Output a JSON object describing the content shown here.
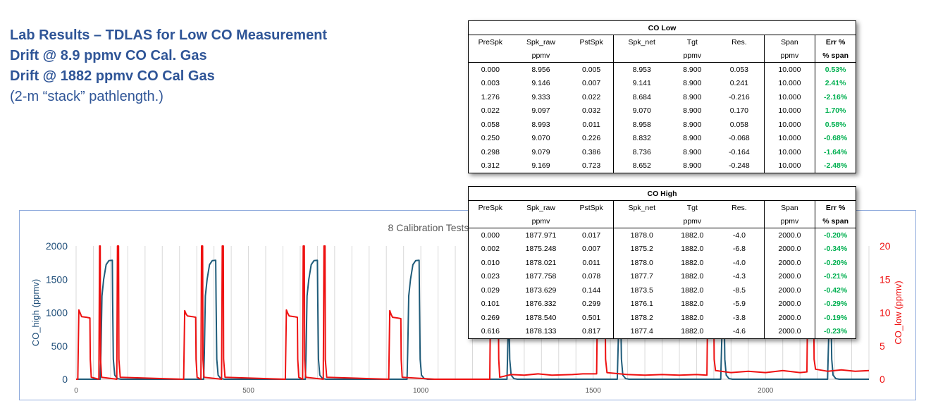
{
  "title": {
    "line1": "Lab Results – TDLAS for Low CO Measurement",
    "line2": "Drift @ 8.9 ppmv CO Cal. Gas",
    "line3": "Drift @ 1882 ppmv CO Cal Gas",
    "note": "(2-m “stack” pathlength.)"
  },
  "colors": {
    "title": "#2f5597",
    "co_high": "#1f5c7a",
    "co_low": "#ee1111",
    "err_good": "#00b050",
    "frame": "#8faadc"
  },
  "tables": {
    "low": {
      "caption": "CO Low",
      "headers": [
        "PreSpk",
        "Spk_raw",
        "PstSpk",
        "Spk_net",
        "Tgt",
        "Res.",
        "Span",
        "Err %"
      ],
      "units": [
        "",
        "ppmv",
        "",
        "",
        "ppmv",
        "",
        "ppmv",
        "% span"
      ],
      "rows": [
        [
          "0.000",
          "8.956",
          "0.005",
          "8.953",
          "8.900",
          "0.053",
          "10.000",
          "0.53%"
        ],
        [
          "0.003",
          "9.146",
          "0.007",
          "9.141",
          "8.900",
          "0.241",
          "10.000",
          "2.41%"
        ],
        [
          "1.276",
          "9.333",
          "0.022",
          "8.684",
          "8.900",
          "-0.216",
          "10.000",
          "-2.16%"
        ],
        [
          "0.022",
          "9.097",
          "0.032",
          "9.070",
          "8.900",
          "0.170",
          "10.000",
          "1.70%"
        ],
        [
          "0.058",
          "8.993",
          "0.011",
          "8.958",
          "8.900",
          "0.058",
          "10.000",
          "0.58%"
        ],
        [
          "0.250",
          "9.070",
          "0.226",
          "8.832",
          "8.900",
          "-0.068",
          "10.000",
          "-0.68%"
        ],
        [
          "0.298",
          "9.079",
          "0.386",
          "8.736",
          "8.900",
          "-0.164",
          "10.000",
          "-1.64%"
        ],
        [
          "0.312",
          "9.169",
          "0.723",
          "8.652",
          "8.900",
          "-0.248",
          "10.000",
          "-2.48%"
        ]
      ]
    },
    "high": {
      "caption": "CO High",
      "headers": [
        "PreSpk",
        "Spk_raw",
        "PstSpk",
        "Spk_net",
        "Tgt",
        "Res.",
        "Span",
        "Err %"
      ],
      "units": [
        "",
        "ppmv",
        "",
        "",
        "ppmv",
        "",
        "ppmv",
        "% span"
      ],
      "rows": [
        [
          "0.000",
          "1877.971",
          "0.017",
          "1878.0",
          "1882.0",
          "-4.0",
          "2000.0",
          "-0.20%"
        ],
        [
          "0.002",
          "1875.248",
          "0.007",
          "1875.2",
          "1882.0",
          "-6.8",
          "2000.0",
          "-0.34%"
        ],
        [
          "0.010",
          "1878.021",
          "0.011",
          "1878.0",
          "1882.0",
          "-4.0",
          "2000.0",
          "-0.20%"
        ],
        [
          "0.023",
          "1877.758",
          "0.078",
          "1877.7",
          "1882.0",
          "-4.3",
          "2000.0",
          "-0.21%"
        ],
        [
          "0.029",
          "1873.629",
          "0.144",
          "1873.5",
          "1882.0",
          "-8.5",
          "2000.0",
          "-0.42%"
        ],
        [
          "0.101",
          "1876.332",
          "0.299",
          "1876.1",
          "1882.0",
          "-5.9",
          "2000.0",
          "-0.29%"
        ],
        [
          "0.269",
          "1878.540",
          "0.501",
          "1878.2",
          "1882.0",
          "-3.8",
          "2000.0",
          "-0.19%"
        ],
        [
          "0.616",
          "1878.133",
          "0.817",
          "1877.4",
          "1882.0",
          "-4.6",
          "2000.0",
          "-0.23%"
        ]
      ]
    }
  },
  "chart_data": {
    "type": "line",
    "title": "8 Calibration Tests",
    "xlabel": "",
    "ylabel_left": "CO_high (ppmv)",
    "ylabel_right": "CO_low (ppmv)",
    "xlim": [
      0,
      2300
    ],
    "ylim_left": [
      0,
      2000
    ],
    "ylim_right": [
      0,
      20
    ],
    "x_ticks": [
      0,
      500,
      1000,
      1500,
      2000
    ],
    "y_ticks_left": [
      0,
      500,
      1000,
      1500,
      2000
    ],
    "y_ticks_right": [
      0,
      5,
      10,
      15,
      20
    ],
    "grid": "vertical",
    "series": [
      {
        "name": "CO_high (ppmv)",
        "axis": "left",
        "points": [
          [
            0,
            0
          ],
          [
            70,
            0
          ],
          [
            72,
            400
          ],
          [
            75,
            1250
          ],
          [
            80,
            1500
          ],
          [
            87,
            1720
          ],
          [
            95,
            1780
          ],
          [
            105,
            1785
          ],
          [
            106,
            1200
          ],
          [
            108,
            300
          ],
          [
            112,
            60
          ],
          [
            120,
            10
          ],
          [
            130,
            0
          ],
          [
            370,
            0
          ],
          [
            372,
            400
          ],
          [
            375,
            1250
          ],
          [
            380,
            1500
          ],
          [
            387,
            1720
          ],
          [
            395,
            1780
          ],
          [
            405,
            1785
          ],
          [
            406,
            1200
          ],
          [
            408,
            300
          ],
          [
            412,
            60
          ],
          [
            420,
            10
          ],
          [
            430,
            0
          ],
          [
            665,
            0
          ],
          [
            667,
            400
          ],
          [
            670,
            1250
          ],
          [
            675,
            1500
          ],
          [
            682,
            1720
          ],
          [
            690,
            1780
          ],
          [
            700,
            1785
          ],
          [
            701,
            1200
          ],
          [
            703,
            300
          ],
          [
            707,
            60
          ],
          [
            715,
            10
          ],
          [
            725,
            0
          ],
          [
            960,
            0
          ],
          [
            962,
            400
          ],
          [
            965,
            1250
          ],
          [
            970,
            1500
          ],
          [
            977,
            1720
          ],
          [
            985,
            1780
          ],
          [
            995,
            1785
          ],
          [
            996,
            1200
          ],
          [
            998,
            300
          ],
          [
            1002,
            60
          ],
          [
            1010,
            10
          ],
          [
            1020,
            0
          ],
          [
            1250,
            0
          ],
          [
            1252,
            400
          ],
          [
            1255,
            1000
          ],
          [
            1256,
            1000
          ],
          [
            1258,
            300
          ],
          [
            1262,
            60
          ],
          [
            1270,
            10
          ],
          [
            1280,
            0
          ],
          [
            1570,
            0
          ],
          [
            1572,
            400
          ],
          [
            1575,
            1000
          ],
          [
            1580,
            1000
          ],
          [
            1582,
            300
          ],
          [
            1586,
            60
          ],
          [
            1594,
            10
          ],
          [
            1604,
            0
          ],
          [
            1870,
            0
          ],
          [
            1872,
            400
          ],
          [
            1875,
            1000
          ],
          [
            1880,
            1000
          ],
          [
            1882,
            300
          ],
          [
            1886,
            60
          ],
          [
            1894,
            10
          ],
          [
            1904,
            0
          ],
          [
            2180,
            0
          ],
          [
            2182,
            400
          ],
          [
            2185,
            1000
          ],
          [
            2190,
            1000
          ],
          [
            2192,
            300
          ],
          [
            2196,
            60
          ],
          [
            2204,
            10
          ],
          [
            2214,
            0
          ],
          [
            2300,
            0
          ]
        ]
      },
      {
        "name": "CO_low (ppmv)",
        "axis": "right",
        "points": [
          [
            0,
            0
          ],
          [
            5,
            0
          ],
          [
            8,
            10.4
          ],
          [
            12,
            9.9
          ],
          [
            16,
            9.4
          ],
          [
            30,
            9.3
          ],
          [
            40,
            9.2
          ],
          [
            41,
            3
          ],
          [
            44,
            0.3
          ],
          [
            66,
            0
          ],
          [
            68,
            20
          ],
          [
            70,
            20
          ],
          [
            71,
            3
          ],
          [
            74,
            0.3
          ],
          [
            118,
            0
          ],
          [
            120,
            20
          ],
          [
            123,
            20
          ],
          [
            124,
            3
          ],
          [
            128,
            0.3
          ],
          [
            310,
            0
          ],
          [
            312,
            0
          ],
          [
            315,
            10.3
          ],
          [
            319,
            9.8
          ],
          [
            323,
            9.5
          ],
          [
            337,
            9.4
          ],
          [
            347,
            9.3
          ],
          [
            348,
            3
          ],
          [
            351,
            0.3
          ],
          [
            362,
            0
          ],
          [
            364,
            20
          ],
          [
            367,
            20
          ],
          [
            368,
            3
          ],
          [
            371,
            0.3
          ],
          [
            422,
            0
          ],
          [
            424,
            20
          ],
          [
            427,
            20
          ],
          [
            428,
            3
          ],
          [
            432,
            0.3
          ],
          [
            605,
            0
          ],
          [
            607,
            0
          ],
          [
            610,
            10.4
          ],
          [
            614,
            9.9
          ],
          [
            618,
            9.5
          ],
          [
            632,
            9.4
          ],
          [
            642,
            9.3
          ],
          [
            643,
            3
          ],
          [
            646,
            0.3
          ],
          [
            657,
            0
          ],
          [
            659,
            20
          ],
          [
            662,
            20
          ],
          [
            663,
            3
          ],
          [
            666,
            0.3
          ],
          [
            717,
            0
          ],
          [
            719,
            20
          ],
          [
            722,
            20
          ],
          [
            723,
            3
          ],
          [
            727,
            0.3
          ],
          [
            905,
            0
          ],
          [
            907,
            0
          ],
          [
            910,
            10.3
          ],
          [
            914,
            9.7
          ],
          [
            918,
            9.3
          ],
          [
            932,
            9.2
          ],
          [
            942,
            9.1
          ],
          [
            943,
            3
          ],
          [
            946,
            0.3
          ],
          [
            1040,
            0
          ],
          [
            1200,
            0
          ],
          [
            1200,
            0.2
          ],
          [
            1202,
            10
          ],
          [
            1210,
            9.6
          ],
          [
            1222,
            9.5
          ],
          [
            1225,
            9.5
          ],
          [
            1226,
            3
          ],
          [
            1229,
            0.3
          ],
          [
            1262,
            0.7
          ],
          [
            1300,
            0.6
          ],
          [
            1340,
            0.8
          ],
          [
            1380,
            0.6
          ],
          [
            1440,
            0.7
          ],
          [
            1470,
            0.8
          ],
          [
            1510,
            0.8
          ],
          [
            1512,
            10
          ],
          [
            1520,
            9.6
          ],
          [
            1535,
            9.5
          ],
          [
            1536,
            3
          ],
          [
            1540,
            1
          ],
          [
            1600,
            0.7
          ],
          [
            1650,
            0.6
          ],
          [
            1700,
            0.7
          ],
          [
            1750,
            0.6
          ],
          [
            1800,
            0.7
          ],
          [
            1830,
            0.6
          ],
          [
            1832,
            10
          ],
          [
            1840,
            9.6
          ],
          [
            1850,
            9.5
          ],
          [
            1851,
            3
          ],
          [
            1855,
            1.3
          ],
          [
            1900,
            1.0
          ],
          [
            1950,
            1.2
          ],
          [
            2000,
            1.0
          ],
          [
            2050,
            1.3
          ],
          [
            2100,
            1.0
          ],
          [
            2120,
            1.1
          ],
          [
            2122,
            10
          ],
          [
            2130,
            9.6
          ],
          [
            2140,
            9.5
          ],
          [
            2141,
            3
          ],
          [
            2145,
            1.5
          ],
          [
            2180,
            1.2
          ],
          [
            2220,
            1.4
          ],
          [
            2260,
            1.2
          ],
          [
            2300,
            1.3
          ]
        ]
      }
    ]
  }
}
